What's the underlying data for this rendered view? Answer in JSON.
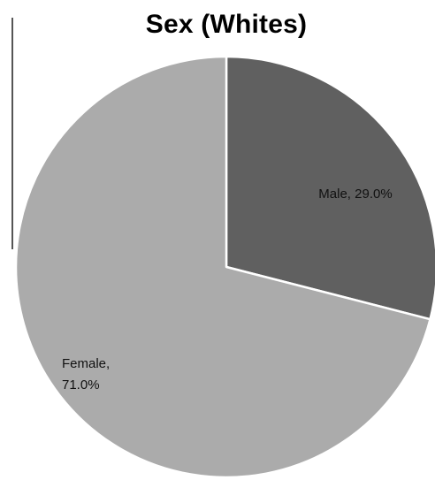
{
  "chart_data": {
    "type": "pie",
    "title": "Sex (Whites)",
    "slices": [
      {
        "name": "Male",
        "value": 29.0,
        "label_lines": [
          "Male, 29.0%"
        ],
        "color": "#606060"
      },
      {
        "name": "Female",
        "value": 71.0,
        "label_lines": [
          "Female,",
          "71.0%"
        ],
        "color": "#ababab"
      }
    ],
    "start_angle_deg": 0,
    "direction": "clockwise",
    "slice_border_color": "#ffffff",
    "legend": "none"
  }
}
